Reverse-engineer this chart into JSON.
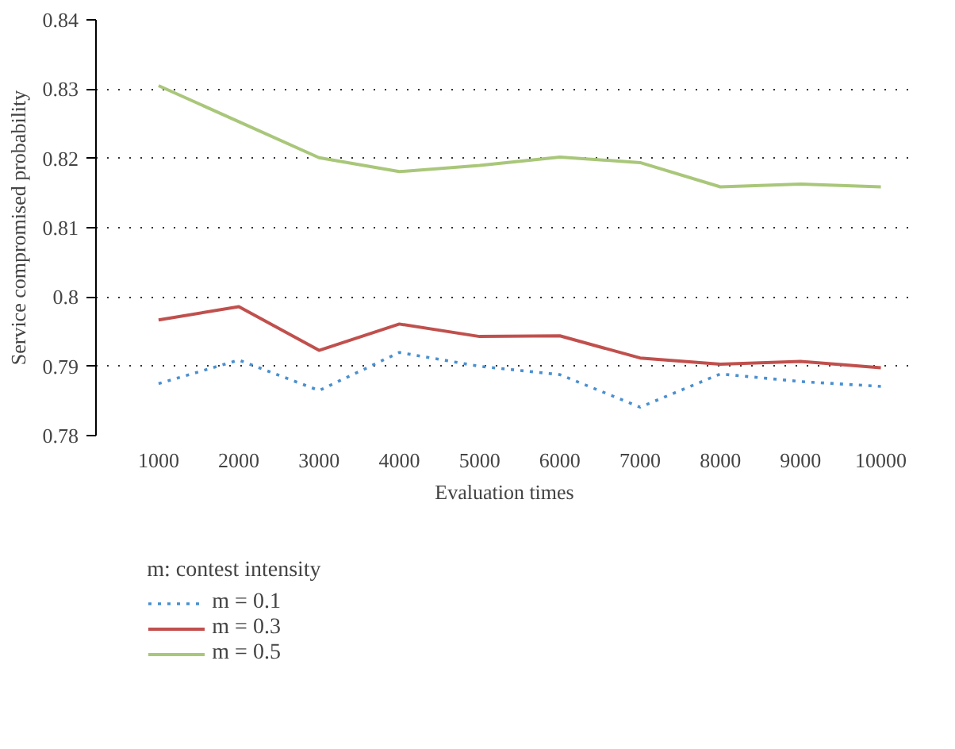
{
  "chart_data": {
    "type": "line",
    "xlabel": "Evaluation times",
    "ylabel": "Service compromised probability",
    "legend_title": "m: contest intensity",
    "categories": [
      "1000",
      "2000",
      "3000",
      "4000",
      "5000",
      "6000",
      "7000",
      "8000",
      "9000",
      "10000"
    ],
    "series": [
      {
        "name": "m = 0.1",
        "color": "#4a90d0",
        "line_style": "dotted",
        "values": [
          0.7875,
          0.7909,
          0.7865,
          0.792,
          0.79,
          0.7888,
          0.7841,
          0.7889,
          0.7878,
          0.7871
        ]
      },
      {
        "name": "m = 0.3",
        "color": "#c0504d",
        "line_style": "solid",
        "values": [
          0.7967,
          0.7986,
          0.7923,
          0.7961,
          0.7943,
          0.7944,
          0.7912,
          0.7903,
          0.7907,
          0.7898
        ]
      },
      {
        "name": "m = 0.5",
        "color": "#a9c77a",
        "line_style": "solid",
        "values": [
          0.8305,
          0.8253,
          0.8201,
          0.8181,
          0.819,
          0.8202,
          0.8194,
          0.8159,
          0.8163,
          0.8159
        ]
      }
    ],
    "ylim": [
      0.78,
      0.84
    ],
    "yticks": [
      0.78,
      0.79,
      0.8,
      0.81,
      0.82,
      0.83,
      0.84
    ],
    "grid": "y",
    "legend": "bottom"
  }
}
